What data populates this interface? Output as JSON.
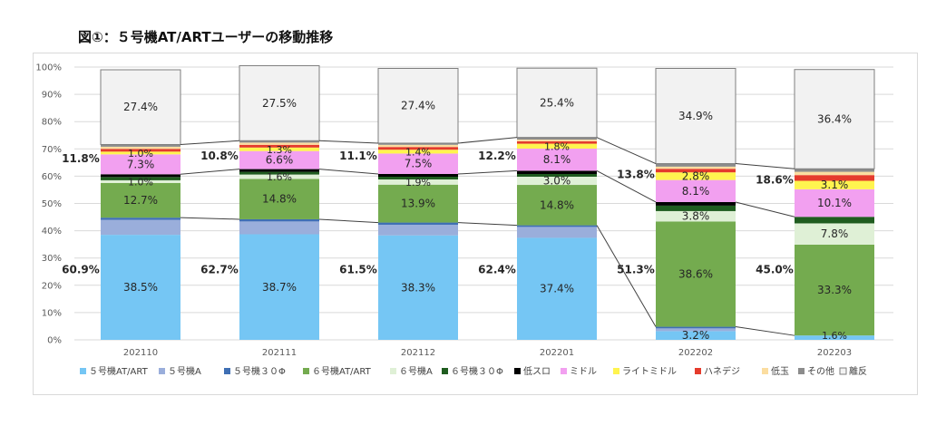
{
  "chart_data": {
    "type": "bar",
    "stacked": true,
    "title": "図①：５号機AT/ARTユーザーの移動推移",
    "categories": [
      "202110",
      "202111",
      "202112",
      "202201",
      "202202",
      "202203"
    ],
    "ylim": [
      0,
      100
    ],
    "yticks": [
      "0%",
      "10%",
      "20%",
      "30%",
      "40%",
      "50%",
      "60%",
      "70%",
      "80%",
      "90%",
      "100%"
    ],
    "grid": true,
    "legend_position": "bottom",
    "series": [
      {
        "name": "５号機AT/ART",
        "color": "#75c6f4",
        "values": [
          38.5,
          38.7,
          38.3,
          37.4,
          3.2,
          1.6
        ],
        "labels": [
          "38.5%",
          "38.7%",
          "38.3%",
          "37.4%",
          "3.2%",
          "1.6%"
        ]
      },
      {
        "name": "５号機A",
        "color": "#9aaedb",
        "values": [
          5.5,
          4.7,
          3.9,
          4.0,
          1.0,
          0.0
        ],
        "labels": [
          "",
          "",
          "",
          "",
          "",
          ""
        ]
      },
      {
        "name": "５号機３０Φ",
        "color": "#3f6fb4",
        "values": [
          0.8,
          0.8,
          0.8,
          0.6,
          0.6,
          0.0
        ],
        "labels": [
          "",
          "",
          "",
          "",
          "",
          ""
        ]
      },
      {
        "name": "６号機AT/ART",
        "color": "#74ab4f",
        "values": [
          12.7,
          14.8,
          13.9,
          14.8,
          38.6,
          33.3
        ],
        "labels": [
          "12.7%",
          "14.8%",
          "13.9%",
          "14.8%",
          "38.6%",
          "33.3%"
        ]
      },
      {
        "name": "６号機A",
        "color": "#dff0d6",
        "values": [
          1.0,
          1.6,
          1.9,
          3.0,
          3.8,
          7.8
        ],
        "labels": [
          "1.0%",
          "1.6%",
          "1.9%",
          "3.0%",
          "3.8%",
          "7.8%"
        ]
      },
      {
        "name": "６号機３０Φ",
        "color": "#1f5c1f",
        "values": [
          1.2,
          1.0,
          1.0,
          1.0,
          2.0,
          2.4
        ],
        "labels": [
          "",
          "",
          "",
          "",
          "",
          ""
        ]
      },
      {
        "name": "低スロ",
        "color": "#000000",
        "values": [
          1.0,
          1.0,
          1.0,
          1.2,
          1.3,
          0.0
        ],
        "labels": [
          "",
          "",
          "",
          "",
          "",
          ""
        ]
      },
      {
        "name": "ミドル",
        "color": "#f2a0f0",
        "values": [
          7.3,
          6.6,
          7.5,
          8.1,
          8.1,
          10.1
        ],
        "labels": [
          "7.3%",
          "6.6%",
          "7.5%",
          "8.1%",
          "8.1%",
          "10.1%"
        ]
      },
      {
        "name": "ライトミドル",
        "color": "#fff44f",
        "values": [
          1.0,
          1.3,
          1.4,
          1.8,
          2.8,
          3.1
        ],
        "labels": [
          "1.0%",
          "1.3%",
          "1.4%",
          "1.8%",
          "2.8%",
          "3.1%"
        ]
      },
      {
        "name": "ハネデジ",
        "color": "#e53b2c",
        "values": [
          1.0,
          1.0,
          1.0,
          0.9,
          1.3,
          2.1
        ],
        "labels": [
          "",
          "",
          "",
          "",
          "",
          ""
        ]
      },
      {
        "name": "低玉",
        "color": "#fbdda0",
        "values": [
          0.8,
          0.8,
          0.8,
          0.6,
          0.8,
          1.2
        ],
        "labels": [
          "",
          "",
          "",
          "",
          "",
          ""
        ]
      },
      {
        "name": "その他",
        "color": "#8c8c8c",
        "values": [
          0.8,
          0.7,
          0.6,
          0.8,
          1.1,
          1.1
        ],
        "labels": [
          "",
          "",
          "",
          "",
          "",
          ""
        ]
      },
      {
        "name": "離反",
        "color": "#f2f2f2",
        "values": [
          27.4,
          27.5,
          27.4,
          25.4,
          34.9,
          36.4
        ],
        "labels": [
          "27.4%",
          "27.5%",
          "27.4%",
          "25.4%",
          "34.9%",
          "36.4%"
        ]
      }
    ],
    "annotations": {
      "lower_group_totals": [
        "60.9%",
        "62.7%",
        "61.5%",
        "62.4%",
        "51.3%",
        "45.0%"
      ],
      "upper_group_totals": [
        "11.8%",
        "10.8%",
        "11.1%",
        "12.2%",
        "13.8%",
        "18.6%"
      ]
    }
  }
}
